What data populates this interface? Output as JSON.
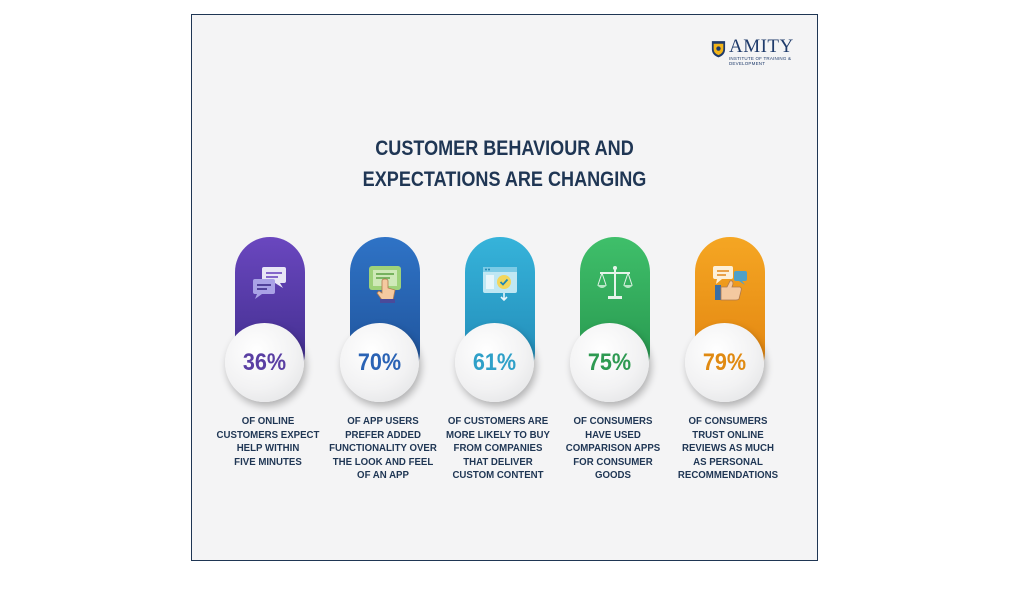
{
  "logo": {
    "name": "AMITY",
    "subtitle": "INSTITUTE OF TRAINING & DEVELOPMENT",
    "color": "#1f3b6b"
  },
  "title": {
    "line1": "CUSTOMER BEHAVIOUR AND",
    "line2": "EXPECTATIONS ARE CHANGING"
  },
  "stats": [
    {
      "percent": "36%",
      "icon": "chat-bubbles-icon",
      "color": "#5a3fa3",
      "lines": [
        "OF ONLINE",
        "CUSTOMERS EXPECT",
        "HELP WITHIN",
        "FIVE MINUTES"
      ]
    },
    {
      "percent": "70%",
      "icon": "tablet-touch-icon",
      "color": "#2a63b5",
      "lines": [
        "OF APP USERS",
        "PREFER ADDED",
        "FUNCTIONALITY OVER",
        "THE LOOK AND FEEL",
        "OF AN APP"
      ]
    },
    {
      "percent": "61%",
      "icon": "custom-content-icon",
      "color": "#2fa0c8",
      "lines": [
        "OF CUSTOMERS ARE",
        "MORE LIKELY TO BUY",
        "FROM COMPANIES",
        "THAT DELIVER",
        "CUSTOM CONTENT"
      ]
    },
    {
      "percent": "75%",
      "icon": "balance-scale-icon",
      "color": "#2e9a52",
      "lines": [
        "OF CONSUMERS",
        "HAVE USED",
        "COMPARISON APPS",
        "FOR CONSUMER",
        "GOODS"
      ]
    },
    {
      "percent": "79%",
      "icon": "thumbs-up-review-icon",
      "color": "#e08a12",
      "lines": [
        "OF CONSUMERS",
        "TRUST ONLINE",
        "REVIEWS AS MUCH",
        "AS PERSONAL",
        "RECOMMENDATIONS"
      ]
    }
  ]
}
